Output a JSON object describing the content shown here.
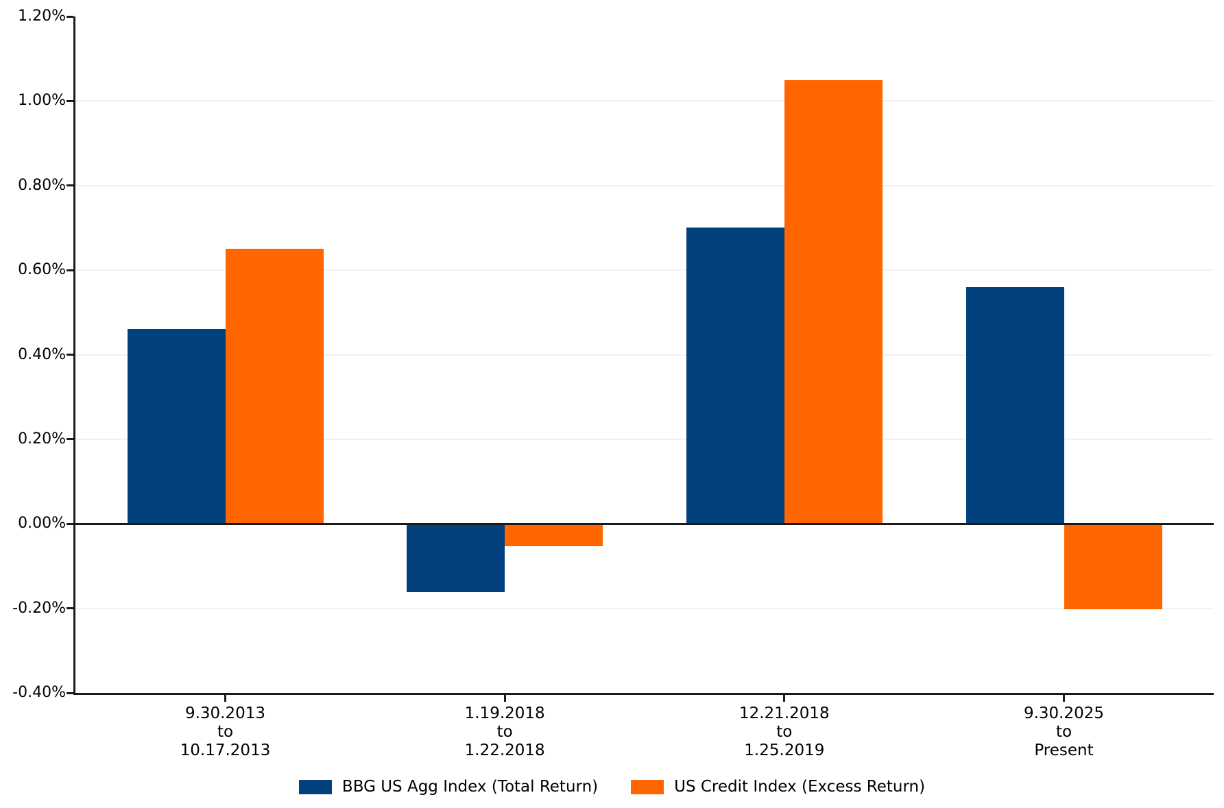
{
  "chart_data": {
    "type": "bar",
    "categories": [
      [
        "9.30.2013",
        "to",
        "10.17.2013"
      ],
      [
        "1.19.2018",
        "to",
        "1.22.2018"
      ],
      [
        "12.21.2018",
        "to",
        "1.25.2019"
      ],
      [
        "9.30.2025",
        "to",
        "Present"
      ]
    ],
    "series": [
      {
        "name": "BBG US Agg Index (Total Return)",
        "color": "#00417E",
        "values": [
          0.46,
          -0.16,
          0.7,
          0.56
        ]
      },
      {
        "name": "US Credit Index (Excess Return)",
        "color": "#FF6600",
        "values": [
          0.65,
          -0.05,
          1.05,
          -0.2
        ]
      }
    ],
    "title": "",
    "xlabel": "",
    "ylabel": "",
    "ylim": [
      -0.4,
      1.2
    ],
    "ytick_step": 0.2,
    "ytick_labels": [
      "1.20%",
      "1.00%",
      "0.80%",
      "0.60%",
      "0.40%",
      "0.20%",
      "0.00%",
      "-0.20%",
      "-0.40%"
    ],
    "grid": "horizontal",
    "legend_position": "bottom"
  },
  "colors": {
    "axis": "#1a1a1a",
    "gridline": "#f1f1f1",
    "background": "#ffffff"
  }
}
